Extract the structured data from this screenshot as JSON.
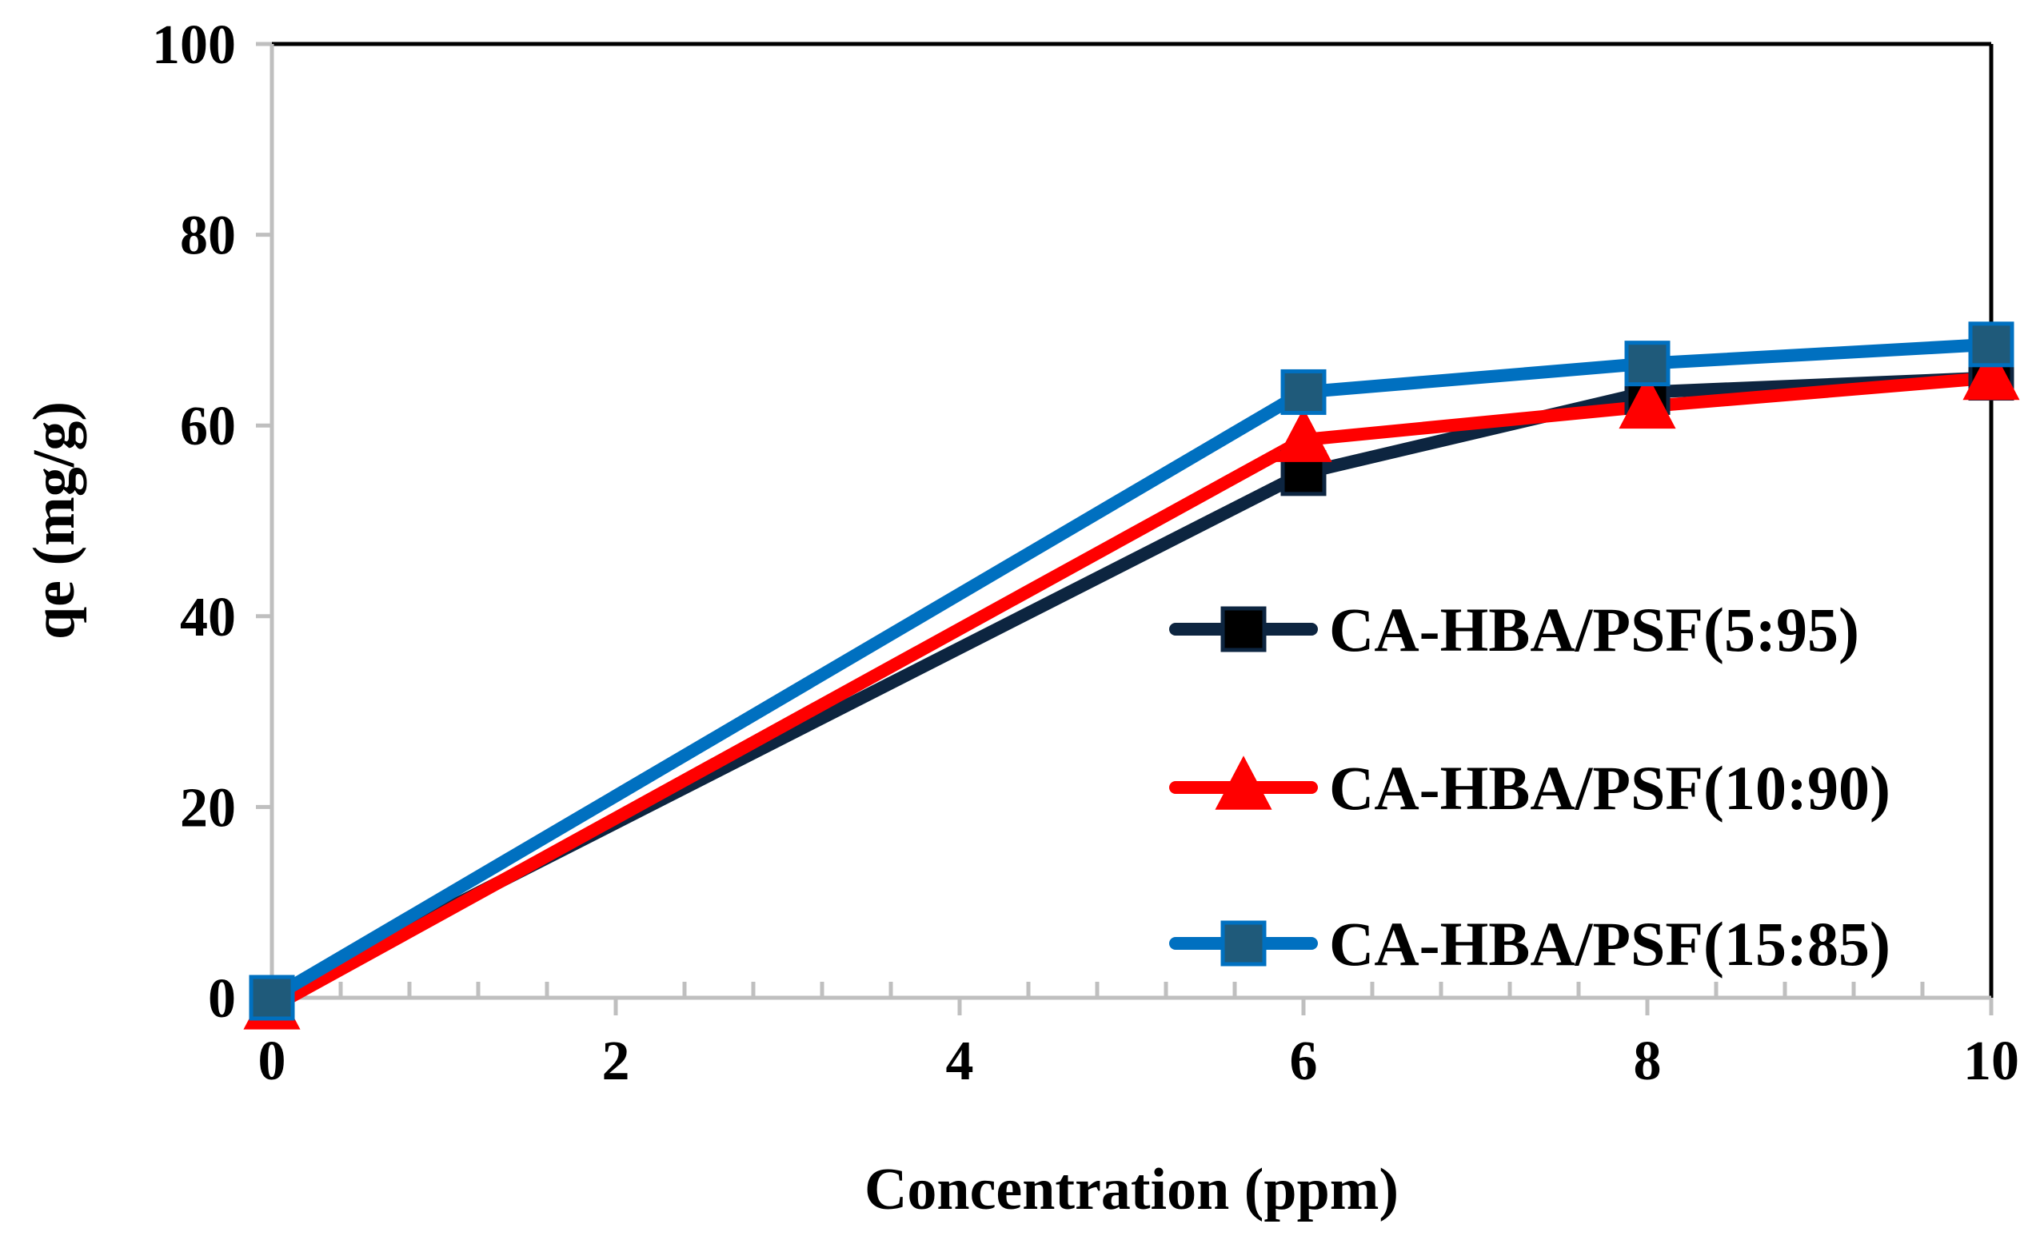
{
  "chart_data": {
    "type": "line",
    "title": "",
    "xlabel": "Concentration (ppm)",
    "ylabel": "qe (mg/g)",
    "xlim": [
      0,
      10
    ],
    "ylim": [
      0,
      100
    ],
    "xticks": [
      0,
      2,
      4,
      6,
      8,
      10
    ],
    "yticks": [
      0,
      20,
      40,
      60,
      80,
      100
    ],
    "grid": false,
    "legend_position": "right",
    "x": [
      0,
      6,
      8,
      10
    ],
    "series": [
      {
        "name": "CA-HBA/PSF(5:95)",
        "values": [
          0,
          55,
          63.5,
          65
        ],
        "color": "#0d2540",
        "marker": "square",
        "marker_color": "#000000"
      },
      {
        "name": "CA-HBA/PSF(10:90)",
        "values": [
          -1,
          58.5,
          62,
          65
        ],
        "color": "#ff0000",
        "marker": "triangle",
        "marker_color": "#ff0000"
      },
      {
        "name": "CA-HBA/PSF(15:85)",
        "values": [
          0,
          63.5,
          66.5,
          68.5
        ],
        "color": "#0070c0",
        "marker": "square",
        "marker_color": "#1f5a7a"
      }
    ],
    "colors": {
      "axis": "#bfbfbf",
      "frame": "#000000"
    }
  }
}
